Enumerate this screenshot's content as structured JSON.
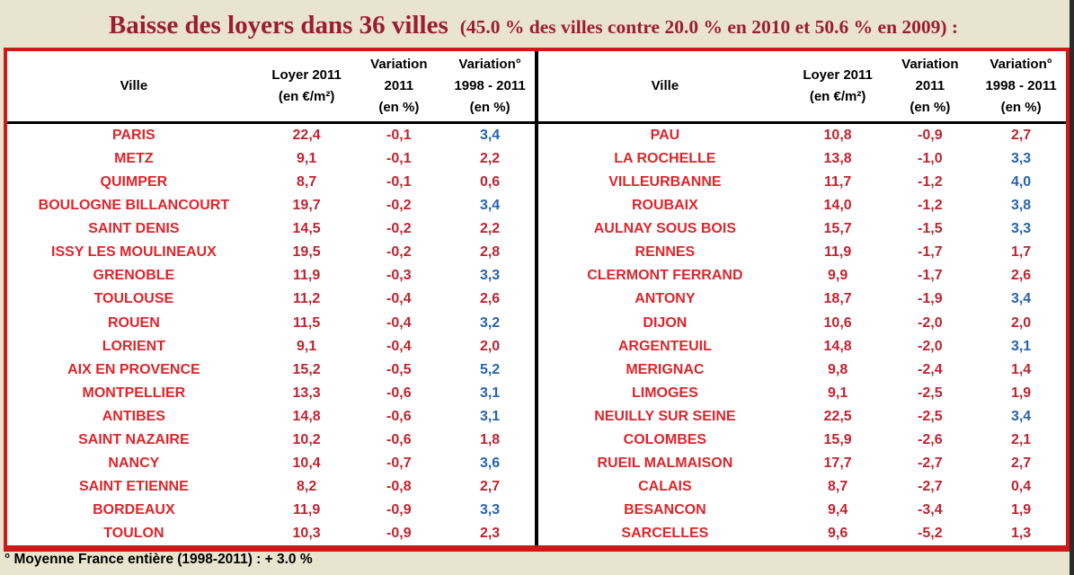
{
  "page": {
    "background": "#e9e4cd",
    "title": {
      "main": "Baisse des loyers dans 36 villes",
      "detail": "(45.0 % des villes contre 20.0 % en 2010 et 50.6 % en 2009) :",
      "color": "#9a1d33"
    },
    "footnote": "° Moyenne France entière (1998-2011) : + 3.0 %"
  },
  "table": {
    "border_color": "#cf1a1a",
    "divider_color": "#000000",
    "city_color": "#dc262c",
    "value_color": "#bf2430",
    "above_average_color": "#2563ae",
    "national_average": 3.0,
    "headers": {
      "ville": "Ville",
      "loyer_l1": "Loyer 2011",
      "loyer_l2": "(en €/m²)",
      "var2011_l1": "Variation",
      "var2011_l2": "2011",
      "var2011_l3": "(en %)",
      "var9811_l1": "Variation°",
      "var9811_l2": "1998 - 2011",
      "var9811_l3": "(en %)"
    },
    "left_rows": [
      {
        "ville": "PARIS",
        "loyer": "22,4",
        "var2011": "-0,1",
        "var1998_2011": "3,4"
      },
      {
        "ville": "METZ",
        "loyer": "9,1",
        "var2011": "-0,1",
        "var1998_2011": "2,2"
      },
      {
        "ville": "QUIMPER",
        "loyer": "8,7",
        "var2011": "-0,1",
        "var1998_2011": "0,6"
      },
      {
        "ville": "BOULOGNE BILLANCOURT",
        "loyer": "19,7",
        "var2011": "-0,2",
        "var1998_2011": "3,4"
      },
      {
        "ville": "SAINT DENIS",
        "loyer": "14,5",
        "var2011": "-0,2",
        "var1998_2011": "2,2"
      },
      {
        "ville": "ISSY LES MOULINEAUX",
        "loyer": "19,5",
        "var2011": "-0,2",
        "var1998_2011": "2,8"
      },
      {
        "ville": "GRENOBLE",
        "loyer": "11,9",
        "var2011": "-0,3",
        "var1998_2011": "3,3"
      },
      {
        "ville": "TOULOUSE",
        "loyer": "11,2",
        "var2011": "-0,4",
        "var1998_2011": "2,6"
      },
      {
        "ville": "ROUEN",
        "loyer": "11,5",
        "var2011": "-0,4",
        "var1998_2011": "3,2"
      },
      {
        "ville": "LORIENT",
        "loyer": "9,1",
        "var2011": "-0,4",
        "var1998_2011": "2,0"
      },
      {
        "ville": "AIX EN PROVENCE",
        "loyer": "15,2",
        "var2011": "-0,5",
        "var1998_2011": "5,2"
      },
      {
        "ville": "MONTPELLIER",
        "loyer": "13,3",
        "var2011": "-0,6",
        "var1998_2011": "3,1"
      },
      {
        "ville": "ANTIBES",
        "loyer": "14,8",
        "var2011": "-0,6",
        "var1998_2011": "3,1"
      },
      {
        "ville": "SAINT NAZAIRE",
        "loyer": "10,2",
        "var2011": "-0,6",
        "var1998_2011": "1,8"
      },
      {
        "ville": "NANCY",
        "loyer": "10,4",
        "var2011": "-0,7",
        "var1998_2011": "3,6"
      },
      {
        "ville": "SAINT ETIENNE",
        "loyer": "8,2",
        "var2011": "-0,8",
        "var1998_2011": "2,7"
      },
      {
        "ville": "BORDEAUX",
        "loyer": "11,9",
        "var2011": "-0,9",
        "var1998_2011": "3,3"
      },
      {
        "ville": "TOULON",
        "loyer": "10,3",
        "var2011": "-0,9",
        "var1998_2011": "2,3"
      }
    ],
    "right_rows": [
      {
        "ville": "PAU",
        "loyer": "10,8",
        "var2011": "-0,9",
        "var1998_2011": "2,7"
      },
      {
        "ville": "LA ROCHELLE",
        "loyer": "13,8",
        "var2011": "-1,0",
        "var1998_2011": "3,3"
      },
      {
        "ville": "VILLEURBANNE",
        "loyer": "11,7",
        "var2011": "-1,2",
        "var1998_2011": "4,0"
      },
      {
        "ville": "ROUBAIX",
        "loyer": "14,0",
        "var2011": "-1,2",
        "var1998_2011": "3,8"
      },
      {
        "ville": "AULNAY SOUS BOIS",
        "loyer": "15,7",
        "var2011": "-1,5",
        "var1998_2011": "3,3"
      },
      {
        "ville": "RENNES",
        "loyer": "11,9",
        "var2011": "-1,7",
        "var1998_2011": "1,7"
      },
      {
        "ville": "CLERMONT FERRAND",
        "loyer": "9,9",
        "var2011": "-1,7",
        "var1998_2011": "2,6"
      },
      {
        "ville": "ANTONY",
        "loyer": "18,7",
        "var2011": "-1,9",
        "var1998_2011": "3,4"
      },
      {
        "ville": "DIJON",
        "loyer": "10,6",
        "var2011": "-2,0",
        "var1998_2011": "2,0"
      },
      {
        "ville": "ARGENTEUIL",
        "loyer": "14,8",
        "var2011": "-2,0",
        "var1998_2011": "3,1"
      },
      {
        "ville": "MERIGNAC",
        "loyer": "9,8",
        "var2011": "-2,4",
        "var1998_2011": "1,4"
      },
      {
        "ville": "LIMOGES",
        "loyer": "9,1",
        "var2011": "-2,5",
        "var1998_2011": "1,9"
      },
      {
        "ville": "NEUILLY SUR SEINE",
        "loyer": "22,5",
        "var2011": "-2,5",
        "var1998_2011": "3,4"
      },
      {
        "ville": "COLOMBES",
        "loyer": "15,9",
        "var2011": "-2,6",
        "var1998_2011": "2,1"
      },
      {
        "ville": "RUEIL MALMAISON",
        "loyer": "17,7",
        "var2011": "-2,7",
        "var1998_2011": "2,7"
      },
      {
        "ville": "CALAIS",
        "loyer": "8,7",
        "var2011": "-2,7",
        "var1998_2011": "0,4"
      },
      {
        "ville": "BESANCON",
        "loyer": "9,4",
        "var2011": "-3,4",
        "var1998_2011": "1,9"
      },
      {
        "ville": "SARCELLES",
        "loyer": "9,6",
        "var2011": "-5,2",
        "var1998_2011": "1,3"
      }
    ]
  }
}
